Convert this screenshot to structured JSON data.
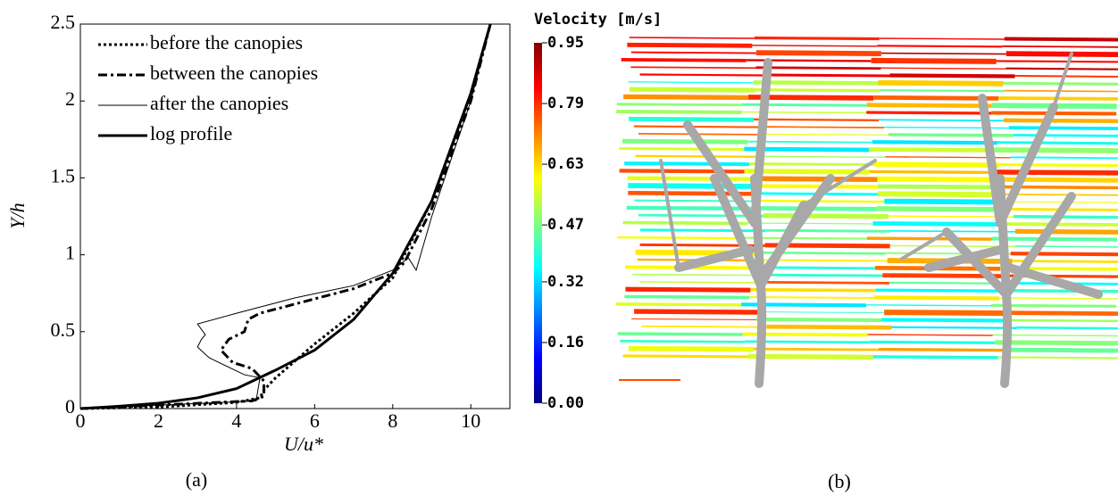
{
  "chart_data": [
    {
      "type": "line",
      "xlabel": "U/u*",
      "ylabel": "Y/h",
      "caption": "(a)",
      "xlim": [
        0,
        11
      ],
      "ylim": [
        0,
        2.5
      ],
      "xticks": [
        0,
        2,
        4,
        6,
        8,
        10
      ],
      "yticks": [
        0,
        0.5,
        1,
        1.5,
        2,
        2.5
      ],
      "grid": false,
      "legend": "upper left",
      "series": [
        {
          "name": "before the canopies",
          "color": "#000000",
          "linestyle": "dotted",
          "linewidth": 3,
          "x": [
            0,
            2,
            4,
            4.6,
            4.7,
            5,
            6,
            7,
            8,
            9,
            10,
            10.5
          ],
          "values": [
            0,
            0.01,
            0.04,
            0.07,
            0.12,
            0.2,
            0.42,
            0.62,
            0.85,
            1.35,
            2.05,
            2.5
          ]
        },
        {
          "name": "between the canopies",
          "color": "#000000",
          "linestyle": "dashdot",
          "linewidth": 3,
          "x": [
            0,
            4.4,
            4.7,
            4.7,
            4.4,
            3.9,
            3.6,
            3.8,
            4.2,
            4.3,
            4.6,
            5.5,
            7,
            8,
            8.3,
            9,
            10,
            10.5
          ],
          "values": [
            0,
            0.05,
            0.08,
            0.18,
            0.26,
            0.3,
            0.38,
            0.45,
            0.5,
            0.58,
            0.62,
            0.68,
            0.78,
            0.88,
            0.95,
            1.3,
            2.0,
            2.5
          ]
        },
        {
          "name": "after the canopies",
          "color": "#000000",
          "linestyle": "solid",
          "linewidth": 1,
          "x": [
            0,
            4.5,
            4.6,
            4.2,
            3.3,
            3,
            3.1,
            3.2,
            3,
            4,
            5.5,
            7,
            8,
            8.4,
            8.6,
            9,
            10,
            10.5
          ],
          "values": [
            0,
            0.05,
            0.2,
            0.22,
            0.33,
            0.4,
            0.45,
            0.48,
            0.55,
            0.62,
            0.72,
            0.8,
            0.9,
            0.98,
            0.9,
            1.25,
            2.0,
            2.5
          ]
        },
        {
          "name": "log profile",
          "color": "#000000",
          "linestyle": "solid",
          "linewidth": 3,
          "x": [
            0,
            1,
            2,
            3,
            4,
            5,
            6,
            7,
            8,
            9,
            10,
            10.5
          ],
          "values": [
            0,
            0.015,
            0.035,
            0.07,
            0.13,
            0.25,
            0.38,
            0.58,
            0.88,
            1.35,
            2.05,
            2.5
          ]
        }
      ]
    },
    {
      "type": "colorbar",
      "title": "Velocity [m/s]",
      "caption": "(b)",
      "clim": [
        0,
        0.95
      ],
      "ticks": [
        0.95,
        0.79,
        0.63,
        0.47,
        0.32,
        0.16,
        {
          "value": 0,
          "label": "0.00"
        }
      ]
    }
  ]
}
